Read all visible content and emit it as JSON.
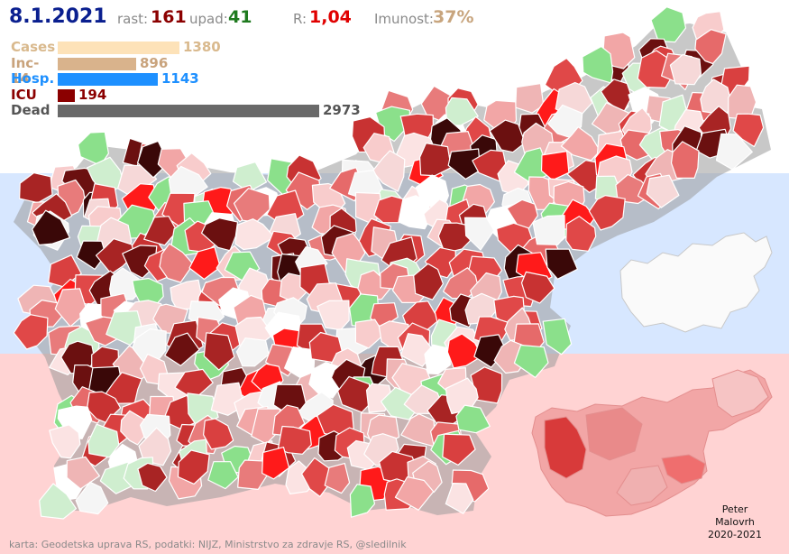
{
  "header": {
    "date": "8.1.2021",
    "rast_label": "rast:",
    "rast_value": "161",
    "upad_label": "upad:",
    "upad_value": "41",
    "r_label": "R:",
    "r_value": "1,04",
    "imunost_label": "Imunost:",
    "imunost_value": "37%"
  },
  "bars": [
    {
      "label": "Cases",
      "value": "1380",
      "amount": 1380,
      "color": "#fde2b8",
      "label_color": "#d9b98d"
    },
    {
      "label": "Inc-14",
      "value": "896",
      "amount": 896,
      "color": "#d9b38c",
      "label_color": "#c9a37c"
    },
    {
      "label": "Hosp.",
      "value": "1143",
      "amount": 1143,
      "color": "#1e90ff",
      "label_color": "#1e90ff"
    },
    {
      "label": "ICU",
      "value": "194",
      "amount": 194,
      "color": "#8b0000",
      "label_color": "#8b0000"
    },
    {
      "label": "Dead",
      "value": "2973",
      "amount": 2973,
      "color": "#696969",
      "label_color": "#555555"
    }
  ],
  "colors": {
    "rast": "#8b0000",
    "upad": "#1f7a1f",
    "r": "#e00000",
    "imunost": "#c8a57e",
    "date": "#0a1f8f"
  },
  "footer": {
    "credit": "karta: Geodetska uprava RS,  podatki: NIJZ, Ministrstvo za zdravje RS, @sledilnik",
    "author_line1": "Peter",
    "author_line2": "Malovrh",
    "author_line3": "2020-2021"
  }
}
